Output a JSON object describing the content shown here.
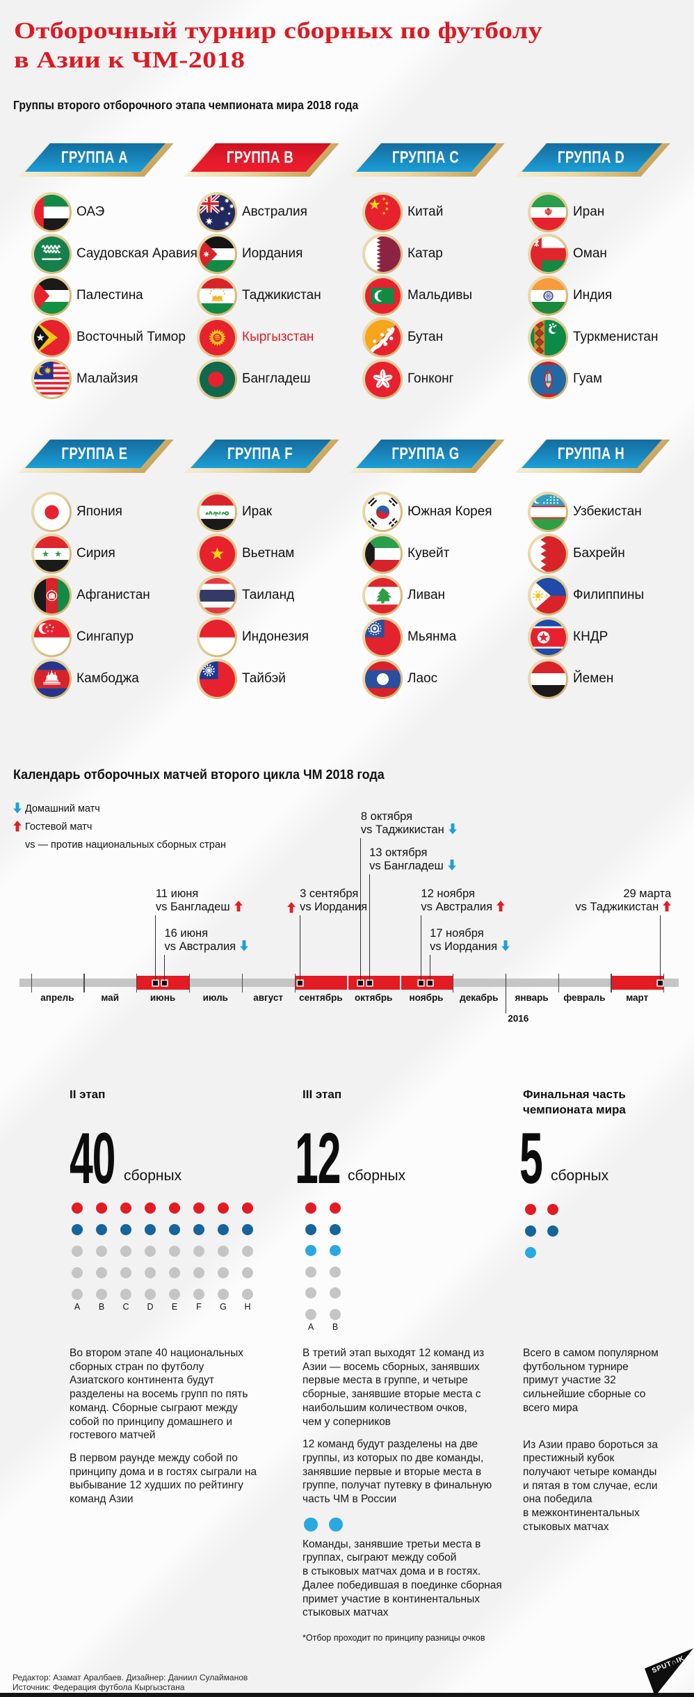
{
  "header": {
    "title_line1": "Отборочный турнир сборных по футболу",
    "title_line2": "в Азии к ЧМ-2018",
    "subtitle": "Группы второго отборочного этапа чемпионата мира 2018 года"
  },
  "colors": {
    "accent_red": "#e31b22",
    "banner_blue_top": "#136d9f",
    "banner_blue_bottom": "#1aa0d8",
    "gold": "#cfa95e",
    "dot_dark_blue": "#15649b",
    "dot_cyan": "#29a9e0",
    "dot_gray": "#c5c5c6",
    "timeline_gray": "#c5c5c6"
  },
  "groups": [
    {
      "label": "ГРУППА A",
      "color": "blue",
      "teams": [
        {
          "name": "ОАЭ",
          "flag": "are"
        },
        {
          "name": "Саудовская Аравия",
          "flag": "ksa"
        },
        {
          "name": "Палестина",
          "flag": "ple"
        },
        {
          "name": "Восточный Тимор",
          "flag": "tls"
        },
        {
          "name": "Малайзия",
          "flag": "mas"
        }
      ]
    },
    {
      "label": "ГРУППА B",
      "color": "red",
      "teams": [
        {
          "name": "Австралия",
          "flag": "aus"
        },
        {
          "name": "Иордания",
          "flag": "jor"
        },
        {
          "name": "Таджикистан",
          "flag": "tjk"
        },
        {
          "name": "Кыргызстан",
          "flag": "kgz",
          "highlight": true
        },
        {
          "name": "Бангладеш",
          "flag": "ban"
        }
      ]
    },
    {
      "label": "ГРУППА C",
      "color": "blue",
      "teams": [
        {
          "name": "Китай",
          "flag": "chn"
        },
        {
          "name": "Катар",
          "flag": "qat"
        },
        {
          "name": "Мальдивы",
          "flag": "mdv"
        },
        {
          "name": "Бутан",
          "flag": "bhu"
        },
        {
          "name": "Гонконг",
          "flag": "hkg"
        }
      ]
    },
    {
      "label": "ГРУППА D",
      "color": "blue",
      "teams": [
        {
          "name": "Иран",
          "flag": "irn"
        },
        {
          "name": "Оман",
          "flag": "omn"
        },
        {
          "name": "Индия",
          "flag": "ind"
        },
        {
          "name": "Туркменистан",
          "flag": "tkm"
        },
        {
          "name": "Гуам",
          "flag": "gum"
        }
      ]
    },
    {
      "label": "ГРУППА E",
      "color": "blue",
      "teams": [
        {
          "name": "Япония",
          "flag": "jpn"
        },
        {
          "name": "Сирия",
          "flag": "syr"
        },
        {
          "name": "Афганистан",
          "flag": "afg"
        },
        {
          "name": "Сингапур",
          "flag": "sgp"
        },
        {
          "name": "Камбоджа",
          "flag": "cam"
        }
      ]
    },
    {
      "label": "ГРУППА F",
      "color": "blue",
      "teams": [
        {
          "name": "Ирак",
          "flag": "irq"
        },
        {
          "name": "Вьетнам",
          "flag": "vie"
        },
        {
          "name": "Таиланд",
          "flag": "tha"
        },
        {
          "name": "Индонезия",
          "flag": "idn"
        },
        {
          "name": "Тайбэй",
          "flag": "tpe"
        }
      ]
    },
    {
      "label": "ГРУППА G",
      "color": "blue",
      "teams": [
        {
          "name": "Южная Корея",
          "flag": "kor"
        },
        {
          "name": "Кувейт",
          "flag": "kuw"
        },
        {
          "name": "Ливан",
          "flag": "lbn"
        },
        {
          "name": "Мьянма",
          "flag": "mya"
        },
        {
          "name": "Лаос",
          "flag": "lao"
        }
      ]
    },
    {
      "label": "ГРУППА H",
      "color": "blue",
      "teams": [
        {
          "name": "Узбекистан",
          "flag": "uzb"
        },
        {
          "name": "Бахрейн",
          "flag": "bhr"
        },
        {
          "name": "Филиппины",
          "flag": "phi"
        },
        {
          "name": "КНДР",
          "flag": "prk"
        },
        {
          "name": "Йемен",
          "flag": "yem"
        }
      ]
    }
  ],
  "calendar": {
    "title": "Календарь отборочных матчей второго цикла ЧМ 2018 года",
    "legend": [
      {
        "type": "home",
        "label": "Домашний матч"
      },
      {
        "type": "away",
        "label": "Гостевой матч"
      },
      {
        "type": "note",
        "label": "vs — против национальных сборных стран"
      }
    ],
    "months": [
      {
        "name": "апрель",
        "highlighted": false
      },
      {
        "name": "май",
        "highlighted": false
      },
      {
        "name": "июнь",
        "highlighted": true
      },
      {
        "name": "июль",
        "highlighted": false
      },
      {
        "name": "август",
        "highlighted": false
      },
      {
        "name": "сентябрь",
        "highlighted": true
      },
      {
        "name": "октябрь",
        "highlighted": true
      },
      {
        "name": "ноябрь",
        "highlighted": true
      },
      {
        "name": "декабрь",
        "highlighted": false
      },
      {
        "name": "январь",
        "highlighted": false
      },
      {
        "name": "февраль",
        "highlighted": false
      },
      {
        "name": "март",
        "highlighted": true
      }
    ],
    "year_tick": {
      "label": "2016",
      "month_boundary": 9
    },
    "events": [
      {
        "date": "11 июня",
        "opponent": "vs Бангладеш",
        "type": "away",
        "month": 2,
        "day": 11,
        "tier": 3,
        "arrow_side": "right",
        "align": "left"
      },
      {
        "date": "16 июня",
        "opponent": "vs Австралия",
        "type": "home",
        "month": 2,
        "day": 16,
        "tier": 4,
        "arrow_side": "right",
        "align": "left"
      },
      {
        "date": "3 сентября",
        "opponent": "vs Иордания",
        "type": "away",
        "month": 5,
        "day": 3,
        "tier": 3,
        "arrow_side": "left",
        "align": "left"
      },
      {
        "date": "8 октября",
        "opponent": "vs Таджикистан",
        "type": "home",
        "month": 6,
        "day": 8,
        "tier": 1,
        "arrow_side": "right",
        "align": "left"
      },
      {
        "date": "13 октября",
        "opponent": "vs Бангладеш",
        "type": "home",
        "month": 6,
        "day": 13,
        "tier": 2,
        "arrow_side": "right",
        "align": "left"
      },
      {
        "date": "12 ноября",
        "opponent": "vs Австралия",
        "type": "away",
        "month": 7,
        "day": 12,
        "tier": 3,
        "arrow_side": "right",
        "align": "left"
      },
      {
        "date": "17 ноября",
        "opponent": "vs Иордания",
        "type": "home",
        "month": 7,
        "day": 17,
        "tier": 4,
        "arrow_side": "right",
        "align": "left"
      },
      {
        "date": "29 марта",
        "opponent": "vs Таджикистан",
        "type": "away",
        "month": 11,
        "day": 29,
        "tier": 3,
        "arrow_side": "right",
        "align": "right"
      }
    ]
  },
  "stages": [
    {
      "heading_lines": [
        "II этап"
      ],
      "number": "40",
      "unit": "сборных",
      "dot_grid": {
        "cols": 8,
        "row_colors": [
          "red",
          "blue",
          "gray",
          "gray",
          "gray"
        ],
        "letters": [
          "A",
          "B",
          "C",
          "D",
          "E",
          "F",
          "G",
          "H"
        ]
      },
      "paragraphs": [
        [
          "Во втором этапе 40 национальных",
          "сборных стран по футболу",
          "Азиатского континента будут",
          "разделены на восемь групп по пять",
          "команд. Сборные сыграют между",
          "собой по принципу домашнего и",
          "гостевого матчей"
        ],
        [
          "В первом раунде между собой по",
          "принципу дома и в гостях сыграли на",
          "выбывание 12 худших по рейтингу",
          "команд Азии"
        ]
      ]
    },
    {
      "heading_lines": [
        "III этап"
      ],
      "number": "12",
      "unit": "сборных",
      "dot_grid": {
        "cols": 2,
        "row_colors": [
          "red",
          "blue",
          "cyan",
          "gray",
          "gray",
          "gray"
        ],
        "letters": [
          "A",
          "B"
        ]
      },
      "paragraphs": [
        [
          "В третий этап выходят 12 команд из",
          "Азии — восемь сборных, занявших",
          "первые места в группе, и четыре",
          "сборные, занявшие вторые места с",
          "наибольшим количеством очков,",
          "чем у соперников"
        ],
        [
          "12 команд будут разделены на две",
          "группы, из которых по две команды,",
          "занявшие первые и вторые места в",
          "группе, получат путевку в финальную",
          "часть ЧМ в России"
        ],
        [
          "Команды, занявшие третьи места в",
          "группах, сыграют между собой",
          "в стыковых матчах дома и в гостях.",
          "Далее победившая в поединке сборная",
          "примет участие в континентальных",
          "стыковых матчах"
        ]
      ],
      "mini_dots_after_paragraph": 2,
      "mini_dots_count": 2
    },
    {
      "heading_lines": [
        "Финальная часть",
        "чемпионата мира"
      ],
      "number": "5",
      "unit": "сборных",
      "dot_rows": [
        {
          "color": "red",
          "count": 2
        },
        {
          "color": "blue",
          "count": 2
        },
        {
          "color": "cyan",
          "count": 1
        }
      ],
      "paragraphs": [
        [
          "Всего в самом популярном",
          "футбольном турнире",
          "примут участие 32",
          "сильнейшие сборные со",
          "всего мира"
        ],
        [
          "Из Азии право бороться за",
          "престижный кубок",
          "получают четыре команды",
          "и пятая в том случае, если",
          "она победила",
          "в межконтинентальных",
          "стыковых матчах"
        ]
      ]
    }
  ],
  "footnote": "*Отбор проходит по принципу разницы очков",
  "footer": {
    "credits_line1": "Редактор: Азамат Аралбаев. Дизайнер: Даниил Сулайманов",
    "credits_line2": "Источник: Федерация футбола Кыргызстана",
    "brand": "SPUTNIK",
    "brand_display": "SPUT∩IK"
  },
  "chart_data": [
    {
      "type": "table",
      "title": "Группы второго отборочного этапа чемпионата мира 2018 года",
      "columns": [
        "ГРУППА A",
        "ГРУППА B",
        "ГРУППА C",
        "ГРУППА D",
        "ГРУППА E",
        "ГРУППА F",
        "ГРУППА G",
        "ГРУППА H"
      ],
      "rows": [
        [
          "ОАЭ",
          "Австралия",
          "Китай",
          "Иран",
          "Япония",
          "Ирак",
          "Южная Корея",
          "Узбекистан"
        ],
        [
          "Саудовская Аравия",
          "Иордания",
          "Катар",
          "Оман",
          "Сирия",
          "Вьетнам",
          "Кувейт",
          "Бахрейн"
        ],
        [
          "Палестина",
          "Таджикистан",
          "Мальдивы",
          "Индия",
          "Афганистан",
          "Таиланд",
          "Ливан",
          "Филиппины"
        ],
        [
          "Восточный Тимор",
          "Кыргызстан",
          "Бутан",
          "Туркменистан",
          "Сингапур",
          "Индонезия",
          "Мьянма",
          "КНДР"
        ],
        [
          "Малайзия",
          "Бангладеш",
          "Гонконг",
          "Гуам",
          "Камбоджа",
          "Тайбэй",
          "Лаос",
          "Йемен"
        ]
      ]
    },
    {
      "type": "line",
      "subtype": "timeline",
      "title": "Календарь отборочных матчей второго цикла ЧМ 2018 года",
      "x": [
        "апрель",
        "май",
        "июнь",
        "июль",
        "август",
        "сентябрь",
        "октябрь",
        "ноябрь",
        "декабрь",
        "январь",
        "февраль",
        "март"
      ],
      "highlighted_months": [
        "июнь",
        "сентябрь",
        "октябрь",
        "ноябрь",
        "март"
      ],
      "year_boundary_label": "2016",
      "events": [
        {
          "date": "11 июня",
          "opponent": "Бангладеш",
          "match": "гостевой"
        },
        {
          "date": "16 июня",
          "opponent": "Австралия",
          "match": "домашний"
        },
        {
          "date": "3 сентября",
          "opponent": "Иордания",
          "match": "гостевой"
        },
        {
          "date": "8 октября",
          "opponent": "Таджикистан",
          "match": "домашний"
        },
        {
          "date": "13 октября",
          "opponent": "Бангладеш",
          "match": "домашний"
        },
        {
          "date": "12 ноября",
          "opponent": "Австралия",
          "match": "гостевой"
        },
        {
          "date": "17 ноября",
          "opponent": "Иордания",
          "match": "домашний"
        },
        {
          "date": "29 марта",
          "opponent": "Таджикистан",
          "match": "гостевой"
        }
      ]
    },
    {
      "type": "bar",
      "subtype": "unit-dots",
      "categories": [
        "II этап",
        "III этап",
        "Финальная часть чемпионата мира"
      ],
      "values": [
        40,
        12,
        5
      ],
      "ylabel": "сборных"
    }
  ]
}
